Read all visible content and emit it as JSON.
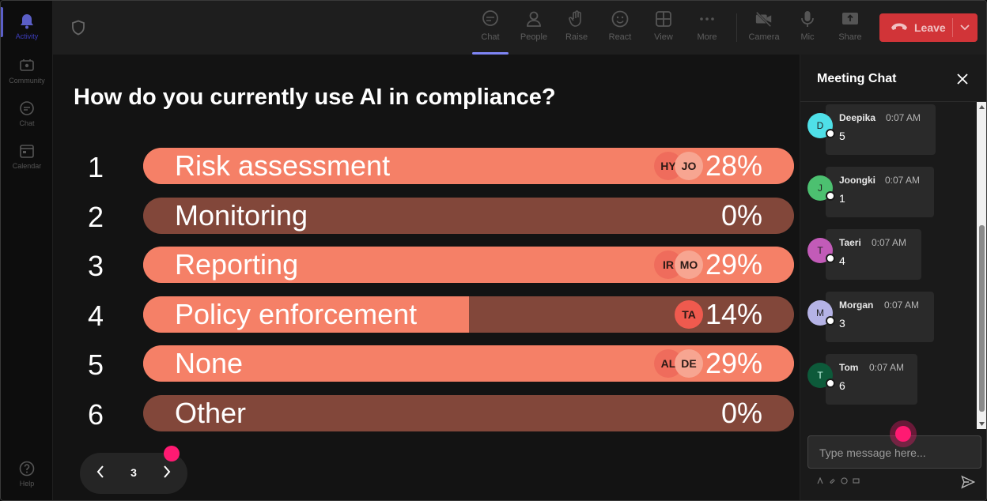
{
  "rail": {
    "items": [
      {
        "label": "Activity",
        "icon": "bell-icon",
        "active": true
      },
      {
        "label": "Community",
        "icon": "community-icon"
      },
      {
        "label": "Chat",
        "icon": "chat-icon"
      },
      {
        "label": "Calendar",
        "icon": "calendar-icon"
      }
    ],
    "help": {
      "label": "Help",
      "icon": "help-icon"
    }
  },
  "toolbar": {
    "tools": [
      {
        "label": "Chat",
        "icon": "chat-icon",
        "active": true
      },
      {
        "label": "People",
        "icon": "people-icon"
      },
      {
        "label": "Raise",
        "icon": "raise-hand-icon"
      },
      {
        "label": "React",
        "icon": "react-icon"
      },
      {
        "label": "View",
        "icon": "view-icon"
      },
      {
        "label": "More",
        "icon": "more-icon"
      },
      {
        "label": "Camera",
        "icon": "camera-off-icon"
      },
      {
        "label": "Mic",
        "icon": "mic-icon"
      },
      {
        "label": "Share",
        "icon": "share-icon"
      }
    ],
    "leave_label": "Leave"
  },
  "poll": {
    "question": "How do you currently use AI in compliance?",
    "options": [
      {
        "num": "1",
        "label": "Risk assessment",
        "percent": 28,
        "percent_text": "28%",
        "avatars": [
          "HY",
          "JO"
        ]
      },
      {
        "num": "2",
        "label": "Monitoring",
        "percent": 0,
        "percent_text": "0%",
        "avatars": []
      },
      {
        "num": "3",
        "label": "Reporting",
        "percent": 29,
        "percent_text": "29%",
        "avatars": [
          "IR",
          "MO"
        ]
      },
      {
        "num": "4",
        "label": "Policy enforcement",
        "percent": 14,
        "percent_text": "14%",
        "avatars": [
          "TA"
        ]
      },
      {
        "num": "5",
        "label": "None",
        "percent": 29,
        "percent_text": "29%",
        "avatars": [
          "AL",
          "DE"
        ]
      },
      {
        "num": "6",
        "label": "Other",
        "percent": 0,
        "percent_text": "0%",
        "avatars": []
      }
    ],
    "bar_fill_fraction": [
      1.0,
      0.0,
      1.0,
      0.5,
      1.0,
      0.0
    ]
  },
  "pager": {
    "page": "3"
  },
  "chat": {
    "title": "Meeting Chat",
    "messages": [
      {
        "initial": "D",
        "name": "Deepika",
        "time": "0:07 AM",
        "text": "5",
        "color": "#4fe0e8"
      },
      {
        "initial": "J",
        "name": "Joongki",
        "time": "0:07 AM",
        "text": "1",
        "color": "#4cc070"
      },
      {
        "initial": "T",
        "name": "Taeri",
        "time": "0:07 AM",
        "text": "4",
        "color": "#c25bb8"
      },
      {
        "initial": "M",
        "name": "Morgan",
        "time": "0:07 AM",
        "text": "3",
        "color": "#b5b3e6"
      },
      {
        "initial": "T",
        "name": "Tom",
        "time": "0:07 AM",
        "text": "6",
        "color": "#0d5a3a"
      }
    ],
    "input_placeholder": "Type message here..."
  },
  "colors": {
    "bar_fill": "#f58067",
    "bar_track": "#82473a",
    "leave": "#d13438",
    "accent": "#7f85f5",
    "pink_dot": "#ff1a72"
  }
}
